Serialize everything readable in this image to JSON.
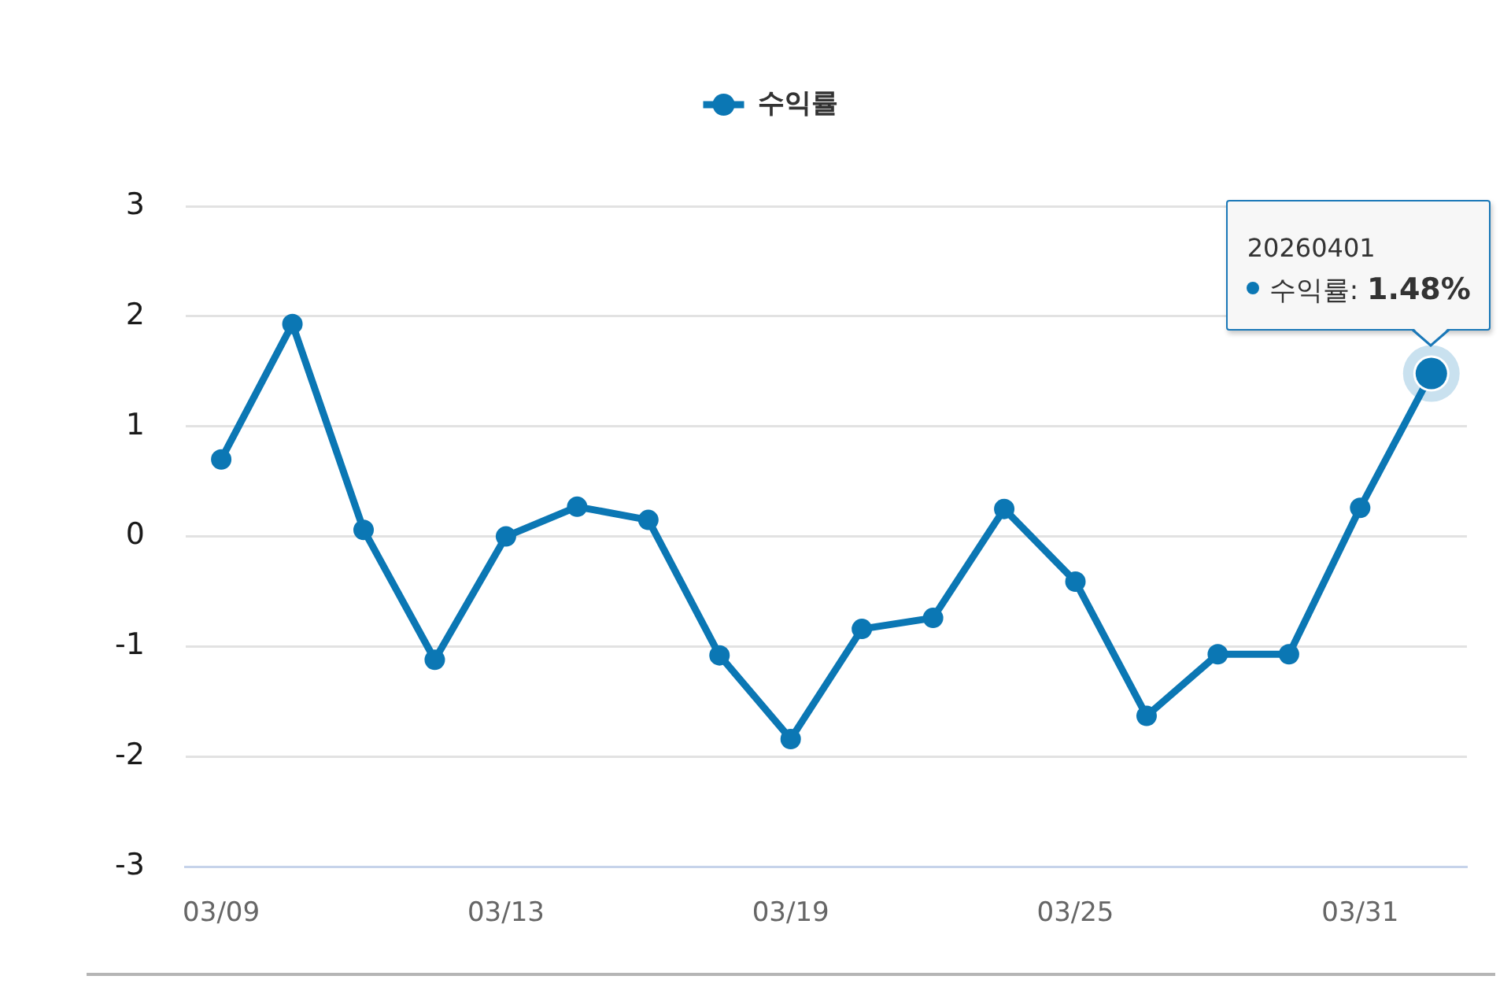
{
  "chart_data": {
    "type": "line",
    "categories": [
      "03/09",
      null,
      null,
      null,
      "03/13",
      null,
      null,
      null,
      "03/19",
      null,
      null,
      null,
      "03/25",
      null,
      null,
      null,
      "03/31",
      null
    ],
    "series": [
      {
        "name": "수익률",
        "color": "#0b77b4",
        "values": [
          0.7,
          1.93,
          0.06,
          -1.12,
          0.0,
          0.27,
          0.15,
          -1.08,
          -1.84,
          -0.84,
          -0.74,
          0.25,
          -0.41,
          -1.63,
          -1.07,
          -1.07,
          0.26,
          1.48
        ]
      }
    ],
    "ylim": [
      -3,
      3
    ],
    "yticks": [
      -3,
      -2,
      -1,
      0,
      1,
      2,
      3
    ],
    "grid": "y",
    "legend": "top",
    "marker": "circle",
    "line_style": "solid",
    "annotations": [
      "20260401",
      "수익률: 1.48%"
    ]
  }
}
